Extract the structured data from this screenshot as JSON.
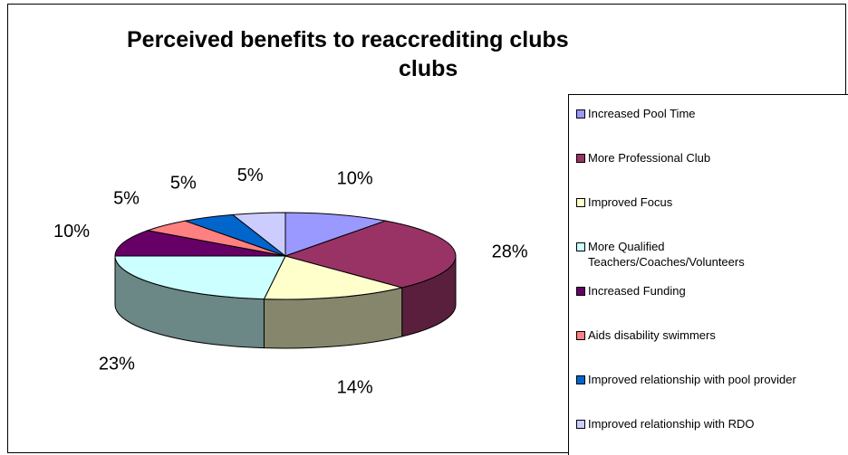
{
  "chart_data": {
    "type": "pie",
    "title_lines": [
      "Perceived benefits to reaccrediting clubs",
      "clubs"
    ],
    "legend_position": "right",
    "slices": [
      {
        "label": "Increased Pool Time",
        "value": 10,
        "value_label": "10%",
        "color": "#9999FF",
        "side_color": "#6B6BB3"
      },
      {
        "label": "More Professional Club",
        "value": 28,
        "value_label": "28%",
        "color": "#993366",
        "side_color": "#5A1F3C"
      },
      {
        "label": "Improved Focus",
        "value": 14,
        "value_label": "14%",
        "color": "#FFFFCC",
        "side_color": "#86866C"
      },
      {
        "label": "More Qualified Teachers/Coaches/Volunteers",
        "label_lines": [
          "More Qualified",
          "Teachers/Coaches/Volunteers"
        ],
        "value": 23,
        "value_label": "23%",
        "color": "#CCFFFF",
        "side_color": "#6B8786"
      },
      {
        "label": "Increased Funding",
        "value": 10,
        "value_label": "10%",
        "color": "#660066",
        "side_color": "#3A003A"
      },
      {
        "label": "Aids disability swimmers",
        "value": 5,
        "value_label": "5%",
        "color": "#FF8080",
        "side_color": "#A65353"
      },
      {
        "label": "Improved relationship with pool provider",
        "value": 5,
        "value_label": "5%",
        "color": "#0066CC",
        "side_color": "#003D7A"
      },
      {
        "label": "Improved relationship with RDO",
        "value": 5,
        "value_label": "5%",
        "color": "#CCCCFF",
        "side_color": "#8A8AB3"
      }
    ]
  }
}
